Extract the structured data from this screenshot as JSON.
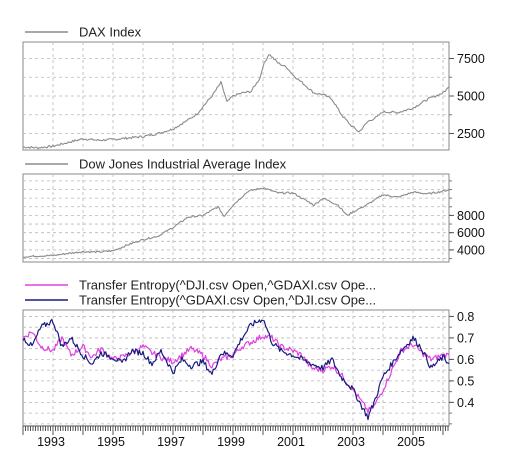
{
  "chart_data": [
    {
      "type": "line",
      "series": [
        {
          "name": "DAX Index",
          "color": "#8c8c8c",
          "x": [
            1992.0,
            1992.5,
            1993.0,
            1993.5,
            1994.0,
            1994.5,
            1995.0,
            1995.5,
            1996.0,
            1996.5,
            1997.0,
            1997.5,
            1997.8,
            1998.0,
            1998.3,
            1998.6,
            1998.8,
            1999.0,
            1999.3,
            1999.6,
            1999.9,
            2000.0,
            2000.2,
            2000.5,
            2000.8,
            2001.0,
            2001.3,
            2001.7,
            2002.0,
            2002.3,
            2002.6,
            2002.9,
            2003.2,
            2003.5,
            2003.8,
            2004.0,
            2004.5,
            2005.0,
            2005.5,
            2006.0,
            2006.2
          ],
          "values": [
            1600,
            1550,
            1650,
            1900,
            2150,
            2050,
            2100,
            2200,
            2300,
            2500,
            2800,
            3400,
            3800,
            4300,
            5000,
            5900,
            4600,
            5000,
            5200,
            5300,
            6200,
            7000,
            7800,
            7200,
            6900,
            6400,
            5900,
            5200,
            5100,
            4800,
            3800,
            3100,
            2600,
            3300,
            3600,
            3950,
            3900,
            4200,
            4800,
            5200,
            5600
          ]
        }
      ],
      "ylim": [
        1400,
        8600
      ],
      "yticks": [
        "2500",
        "5000",
        "7500"
      ]
    },
    {
      "type": "line",
      "series": [
        {
          "name": "Dow Jones Industrial Average Index",
          "color": "#8c8c8c",
          "x": [
            1992.0,
            1992.5,
            1993.0,
            1993.5,
            1994.0,
            1994.5,
            1995.0,
            1995.5,
            1996.0,
            1996.5,
            1997.0,
            1997.5,
            1998.0,
            1998.5,
            1998.7,
            1999.0,
            1999.5,
            2000.0,
            2000.5,
            2001.0,
            2001.3,
            2001.7,
            2002.0,
            2002.5,
            2002.8,
            2003.0,
            2003.5,
            2004.0,
            2004.5,
            2005.0,
            2005.5,
            2006.0,
            2006.2
          ],
          "values": [
            3200,
            3300,
            3350,
            3600,
            3800,
            3750,
            3900,
            4600,
            5200,
            5600,
            6600,
            7800,
            8000,
            9000,
            7900,
            9200,
            10800,
            11200,
            10600,
            10600,
            10000,
            9200,
            10000,
            9200,
            8000,
            8400,
            9300,
            10400,
            10100,
            10700,
            10500,
            10800,
            11000
          ]
        }
      ],
      "ylim": [
        2600,
        12800
      ],
      "yticks": [
        "4000",
        "6000",
        "8000"
      ]
    },
    {
      "type": "line",
      "series": [
        {
          "name": "Transfer Entropy(^DJI.csv Open,^GDAXI.csv Ope...",
          "color": "#e040e0",
          "x": [
            1992.0,
            1992.3,
            1992.6,
            1993.0,
            1993.3,
            1993.6,
            1994.0,
            1994.3,
            1994.6,
            1995.0,
            1995.3,
            1995.6,
            1996.0,
            1996.3,
            1996.6,
            1997.0,
            1997.3,
            1997.6,
            1998.0,
            1998.3,
            1998.6,
            1999.0,
            1999.3,
            1999.6,
            2000.0,
            2000.3,
            2000.6,
            2001.0,
            2001.3,
            2001.6,
            2002.0,
            2002.3,
            2002.6,
            2003.0,
            2003.3,
            2003.5,
            2003.7,
            2004.0,
            2004.3,
            2004.6,
            2005.0,
            2005.3,
            2005.6,
            2006.0,
            2006.2
          ],
          "values": [
            0.7,
            0.73,
            0.66,
            0.64,
            0.7,
            0.62,
            0.66,
            0.61,
            0.65,
            0.6,
            0.61,
            0.63,
            0.66,
            0.63,
            0.61,
            0.59,
            0.62,
            0.65,
            0.62,
            0.57,
            0.6,
            0.62,
            0.66,
            0.68,
            0.71,
            0.7,
            0.66,
            0.64,
            0.62,
            0.56,
            0.55,
            0.57,
            0.53,
            0.46,
            0.4,
            0.36,
            0.38,
            0.46,
            0.55,
            0.64,
            0.67,
            0.63,
            0.6,
            0.62,
            0.62
          ]
        },
        {
          "name": "Transfer Entropy(^GDAXI.csv Open,^DJI.csv Ope...",
          "color": "#1a1a80",
          "x": [
            1992.0,
            1992.3,
            1992.6,
            1993.0,
            1993.3,
            1993.6,
            1994.0,
            1994.3,
            1994.6,
            1995.0,
            1995.3,
            1995.6,
            1996.0,
            1996.3,
            1996.6,
            1997.0,
            1997.3,
            1997.6,
            1998.0,
            1998.3,
            1998.6,
            1999.0,
            1999.3,
            1999.6,
            2000.0,
            2000.3,
            2000.6,
            2001.0,
            2001.3,
            2001.6,
            2002.0,
            2002.3,
            2002.6,
            2003.0,
            2003.3,
            2003.5,
            2003.7,
            2004.0,
            2004.3,
            2004.6,
            2005.0,
            2005.3,
            2005.6,
            2006.0,
            2006.2
          ],
          "values": [
            0.7,
            0.66,
            0.75,
            0.78,
            0.66,
            0.7,
            0.62,
            0.58,
            0.63,
            0.61,
            0.58,
            0.64,
            0.63,
            0.58,
            0.64,
            0.54,
            0.6,
            0.57,
            0.59,
            0.53,
            0.63,
            0.62,
            0.7,
            0.76,
            0.79,
            0.68,
            0.64,
            0.62,
            0.6,
            0.58,
            0.56,
            0.6,
            0.52,
            0.46,
            0.38,
            0.33,
            0.4,
            0.52,
            0.58,
            0.64,
            0.7,
            0.65,
            0.56,
            0.61,
            0.58
          ]
        }
      ],
      "ylim": [
        0.29,
        0.83
      ],
      "yticks": [
        "0.4",
        "0.5",
        "0.6",
        "0.7",
        "0.8"
      ]
    }
  ],
  "xaxis": {
    "xlim": [
      1992.0,
      2006.2
    ],
    "tick_labels": [
      "1993",
      "1995",
      "1997",
      "1999",
      "2001",
      "2003",
      "2005"
    ]
  },
  "grid": true,
  "legend_placement": "top-left"
}
